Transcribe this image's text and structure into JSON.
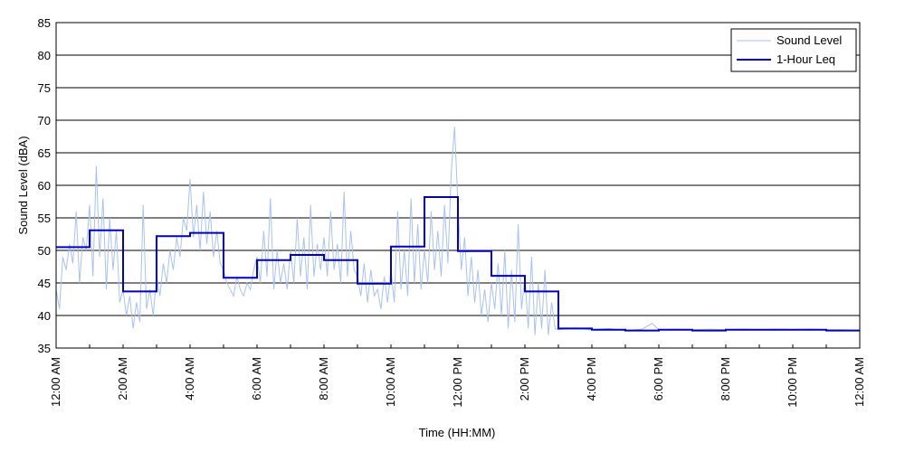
{
  "chart_data": {
    "type": "line",
    "xlabel": "Time (HH:MM)",
    "ylabel": "Sound Level (dBA)",
    "xlim": [
      0,
      24
    ],
    "ylim": [
      35,
      85
    ],
    "grid": "horizontal",
    "legend_position": "top-right",
    "y_ticks": [
      "35",
      "40",
      "45",
      "50",
      "55",
      "60",
      "65",
      "70",
      "75",
      "80",
      "85"
    ],
    "x_ticks": [
      {
        "hour": 0,
        "label": "12:00 AM"
      },
      {
        "hour": 2,
        "label": "2:00 AM"
      },
      {
        "hour": 4,
        "label": "4:00 AM"
      },
      {
        "hour": 6,
        "label": "6:00 AM"
      },
      {
        "hour": 8,
        "label": "8:00 AM"
      },
      {
        "hour": 10,
        "label": "10:00 AM"
      },
      {
        "hour": 12,
        "label": "12:00 PM"
      },
      {
        "hour": 14,
        "label": "2:00 PM"
      },
      {
        "hour": 16,
        "label": "4:00 PM"
      },
      {
        "hour": 18,
        "label": "6:00 PM"
      },
      {
        "hour": 20,
        "label": "8:00 PM"
      },
      {
        "hour": 22,
        "label": "10:00 PM"
      },
      {
        "hour": 24,
        "label": "12:00 AM"
      }
    ],
    "series": [
      {
        "name": "Sound Level",
        "color": "#a9c2f2",
        "points": [
          [
            0.0,
            44
          ],
          [
            0.1,
            41
          ],
          [
            0.2,
            49
          ],
          [
            0.3,
            47
          ],
          [
            0.4,
            51
          ],
          [
            0.5,
            48
          ],
          [
            0.6,
            56
          ],
          [
            0.7,
            45
          ],
          [
            0.8,
            52
          ],
          [
            0.9,
            50
          ],
          [
            1.0,
            57
          ],
          [
            1.1,
            46
          ],
          [
            1.2,
            63
          ],
          [
            1.3,
            49
          ],
          [
            1.4,
            58
          ],
          [
            1.5,
            44
          ],
          [
            1.6,
            55
          ],
          [
            1.7,
            47
          ],
          [
            1.8,
            53
          ],
          [
            1.9,
            42
          ],
          [
            2.0,
            44
          ],
          [
            2.1,
            40
          ],
          [
            2.2,
            43
          ],
          [
            2.3,
            38
          ],
          [
            2.4,
            42
          ],
          [
            2.5,
            39
          ],
          [
            2.6,
            57
          ],
          [
            2.7,
            41
          ],
          [
            2.8,
            44
          ],
          [
            2.9,
            40
          ],
          [
            3.0,
            46
          ],
          [
            3.1,
            43
          ],
          [
            3.2,
            48
          ],
          [
            3.3,
            45
          ],
          [
            3.4,
            50
          ],
          [
            3.5,
            47
          ],
          [
            3.6,
            52
          ],
          [
            3.7,
            49
          ],
          [
            3.8,
            55
          ],
          [
            3.9,
            53
          ],
          [
            4.0,
            61
          ],
          [
            4.1,
            52
          ],
          [
            4.2,
            57
          ],
          [
            4.3,
            50
          ],
          [
            4.4,
            59
          ],
          [
            4.5,
            51
          ],
          [
            4.6,
            56
          ],
          [
            4.7,
            49
          ],
          [
            4.8,
            53
          ],
          [
            4.9,
            48
          ],
          [
            5.0,
            47
          ],
          [
            5.1,
            45
          ],
          [
            5.2,
            44
          ],
          [
            5.3,
            43
          ],
          [
            5.4,
            46
          ],
          [
            5.5,
            44
          ],
          [
            5.6,
            43
          ],
          [
            5.7,
            45
          ],
          [
            5.8,
            44
          ],
          [
            5.9,
            47
          ],
          [
            6.0,
            49
          ],
          [
            6.1,
            45
          ],
          [
            6.2,
            53
          ],
          [
            6.3,
            46
          ],
          [
            6.4,
            58
          ],
          [
            6.5,
            44
          ],
          [
            6.6,
            50
          ],
          [
            6.7,
            45
          ],
          [
            6.8,
            48
          ],
          [
            6.9,
            44
          ],
          [
            7.0,
            50
          ],
          [
            7.1,
            45
          ],
          [
            7.2,
            55
          ],
          [
            7.3,
            46
          ],
          [
            7.4,
            52
          ],
          [
            7.5,
            44
          ],
          [
            7.6,
            57
          ],
          [
            7.7,
            46
          ],
          [
            7.8,
            51
          ],
          [
            7.9,
            47
          ],
          [
            8.0,
            52
          ],
          [
            8.1,
            46
          ],
          [
            8.2,
            56
          ],
          [
            8.3,
            47
          ],
          [
            8.4,
            51
          ],
          [
            8.5,
            45
          ],
          [
            8.6,
            59
          ],
          [
            8.7,
            46
          ],
          [
            8.8,
            53
          ],
          [
            8.9,
            47
          ],
          [
            9.0,
            46
          ],
          [
            9.1,
            43
          ],
          [
            9.2,
            48
          ],
          [
            9.3,
            42
          ],
          [
            9.4,
            47
          ],
          [
            9.5,
            43
          ],
          [
            9.6,
            44
          ],
          [
            9.7,
            41
          ],
          [
            9.8,
            46
          ],
          [
            9.9,
            42
          ],
          [
            10.0,
            47
          ],
          [
            10.1,
            42
          ],
          [
            10.2,
            56
          ],
          [
            10.3,
            44
          ],
          [
            10.4,
            50
          ],
          [
            10.5,
            43
          ],
          [
            10.6,
            58
          ],
          [
            10.7,
            45
          ],
          [
            10.8,
            54
          ],
          [
            10.9,
            44
          ],
          [
            11.0,
            50
          ],
          [
            11.1,
            45
          ],
          [
            11.2,
            56
          ],
          [
            11.3,
            47
          ],
          [
            11.4,
            53
          ],
          [
            11.5,
            46
          ],
          [
            11.6,
            57
          ],
          [
            11.7,
            48
          ],
          [
            11.8,
            62
          ],
          [
            11.9,
            69
          ],
          [
            12.0,
            57
          ],
          [
            12.1,
            47
          ],
          [
            12.2,
            52
          ],
          [
            12.3,
            43
          ],
          [
            12.4,
            49
          ],
          [
            12.5,
            42
          ],
          [
            12.6,
            47
          ],
          [
            12.7,
            40
          ],
          [
            12.8,
            44
          ],
          [
            12.9,
            39
          ],
          [
            13.0,
            45
          ],
          [
            13.1,
            41
          ],
          [
            13.2,
            48
          ],
          [
            13.3,
            40
          ],
          [
            13.4,
            50
          ],
          [
            13.5,
            38
          ],
          [
            13.6,
            47
          ],
          [
            13.7,
            39
          ],
          [
            13.8,
            54
          ],
          [
            13.9,
            41
          ],
          [
            14.0,
            46
          ],
          [
            14.1,
            38
          ],
          [
            14.2,
            49
          ],
          [
            14.3,
            37
          ],
          [
            14.4,
            45
          ],
          [
            14.5,
            38
          ],
          [
            14.6,
            47
          ],
          [
            14.7,
            37
          ],
          [
            14.8,
            42
          ],
          [
            14.9,
            38
          ],
          [
            15.0,
            37.8
          ],
          [
            15.5,
            38.1
          ],
          [
            16.0,
            37.8
          ],
          [
            16.5,
            38
          ],
          [
            17.0,
            37.7
          ],
          [
            17.5,
            37.9
          ],
          [
            17.8,
            38.8
          ],
          [
            18.0,
            37.8
          ],
          [
            18.5,
            37.9
          ],
          [
            19.0,
            37.8
          ],
          [
            19.5,
            37.9
          ],
          [
            20.0,
            37.8
          ],
          [
            20.5,
            37.9
          ],
          [
            21.0,
            37.8
          ],
          [
            21.5,
            37.9
          ],
          [
            22.0,
            37.8
          ],
          [
            22.5,
            37.9
          ],
          [
            23.0,
            37.8
          ],
          [
            23.5,
            37.8
          ],
          [
            24.0,
            37.7
          ]
        ]
      },
      {
        "name": "1-Hour Leq",
        "color": "#0000c8",
        "type": "step",
        "values": [
          50.5,
          53.1,
          43.7,
          52.2,
          52.7,
          45.8,
          48.5,
          49.3,
          48.5,
          44.9,
          50.6,
          58.2,
          49.9,
          46.1,
          43.7,
          38.0,
          37.8,
          37.7,
          37.8,
          37.7,
          37.8,
          37.8,
          37.8,
          37.7
        ]
      }
    ]
  }
}
